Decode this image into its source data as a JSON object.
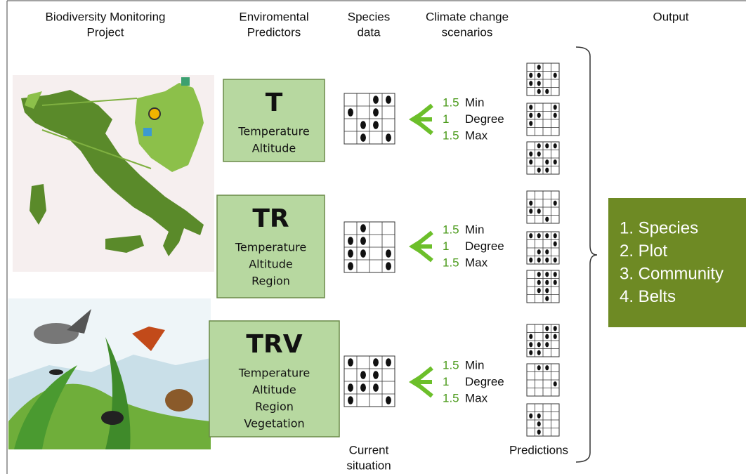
{
  "headers": [
    {
      "lines": [
        "Biodiversity Monitoring",
        "Project"
      ]
    },
    {
      "lines": [
        "Enviromental",
        "Predictors"
      ]
    },
    {
      "lines": [
        "Species",
        "data"
      ]
    },
    {
      "lines": [
        "Climate change",
        "scenarios"
      ]
    },
    {
      "lines": [
        "Output"
      ]
    }
  ],
  "models": [
    {
      "title": "T",
      "predictors": [
        "Temperature",
        "Altitude"
      ]
    },
    {
      "title": "TR",
      "predictors": [
        "Temperature",
        "Altitude",
        "Region"
      ]
    },
    {
      "title": "TRV",
      "predictors": [
        "Temperature",
        "Altitude",
        "Region",
        "Vegetation"
      ]
    }
  ],
  "scenarios": [
    [
      {
        "amount": "1.5",
        "label": "Min"
      },
      {
        "amount": "1",
        "label": "Degree"
      },
      {
        "amount": "1.5",
        "label": "Max"
      }
    ],
    [
      {
        "amount": "1.5",
        "label": "Min"
      },
      {
        "amount": "1",
        "label": "Degree"
      },
      {
        "amount": "1.5",
        "label": "Max"
      }
    ],
    [
      {
        "amount": "1.5",
        "label": "Min"
      },
      {
        "amount": "1",
        "label": "Degree"
      },
      {
        "amount": "1.5",
        "label": "Max"
      }
    ]
  ],
  "captions": {
    "current": [
      "Current",
      "situation"
    ],
    "predictions": "Predictions"
  },
  "output": [
    "1. Species",
    "2. Plot",
    "3. Community",
    "4. Belts"
  ]
}
